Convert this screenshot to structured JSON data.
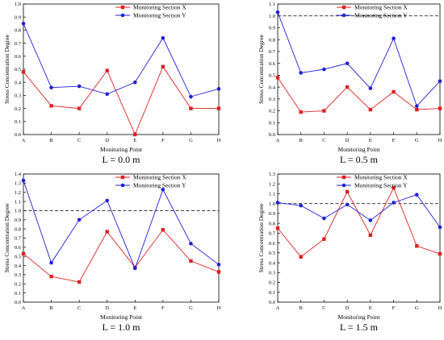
{
  "chart_data": [
    {
      "type": "line",
      "caption": "L = 0.0 m",
      "xlabel": "Monitoring Point",
      "ylabel": "Stress Concentration Degree",
      "categories": [
        "A",
        "B",
        "C",
        "D",
        "E",
        "F",
        "G",
        "H"
      ],
      "ylim": [
        0.0,
        1.0
      ],
      "yticks": [
        "0.0",
        "0.1",
        "0.2",
        "0.3",
        "0.4",
        "0.5",
        "0.6",
        "0.7",
        "0.8",
        "0.9",
        "1.0"
      ],
      "reference_line": null,
      "legend_position": "top-right",
      "series": [
        {
          "name": "Monitoring Section X",
          "color": "#e02020",
          "marker": "square",
          "values": [
            0.48,
            0.22,
            0.2,
            0.49,
            0.0,
            0.52,
            0.2,
            0.2
          ]
        },
        {
          "name": "Monitoring Section Y",
          "color": "#1f1fd6",
          "marker": "circle",
          "values": [
            0.85,
            0.36,
            0.37,
            0.31,
            0.4,
            0.74,
            0.29,
            0.35
          ]
        }
      ]
    },
    {
      "type": "line",
      "caption": "L = 0.5 m",
      "xlabel": "Monitoring Point",
      "ylabel": "Stress Concentration Degree",
      "categories": [
        "A",
        "B",
        "C",
        "D",
        "E",
        "F",
        "G",
        "H"
      ],
      "ylim": [
        0.0,
        1.1
      ],
      "yticks": [
        "0.0",
        "0.1",
        "0.2",
        "0.3",
        "0.4",
        "0.5",
        "0.6",
        "0.7",
        "0.8",
        "0.9",
        "1.0",
        "1.1"
      ],
      "reference_line": 1.0,
      "legend_position": "top-right",
      "series": [
        {
          "name": "Monitoring Section X",
          "color": "#e02020",
          "marker": "square",
          "values": [
            0.48,
            0.19,
            0.2,
            0.4,
            0.21,
            0.36,
            0.21,
            0.22
          ]
        },
        {
          "name": "Monitoring Section Y",
          "color": "#1f1fd6",
          "marker": "circle",
          "values": [
            1.03,
            0.52,
            0.55,
            0.6,
            0.39,
            0.81,
            0.24,
            0.45
          ]
        }
      ]
    },
    {
      "type": "line",
      "caption": "L = 1.0 m",
      "xlabel": "Monitoring Point",
      "ylabel": "Stress Concentration Degree",
      "categories": [
        "A",
        "B",
        "C",
        "D",
        "E",
        "F",
        "G",
        "H"
      ],
      "ylim": [
        0.0,
        1.4
      ],
      "yticks": [
        "0.0",
        "0.1",
        "0.2",
        "0.3",
        "0.4",
        "0.5",
        "0.6",
        "0.7",
        "0.8",
        "0.9",
        "1.0",
        "1.1",
        "1.2",
        "1.3",
        "1.4"
      ],
      "reference_line": 1.0,
      "legend_position": "top-right",
      "series": [
        {
          "name": "Monitoring Section X",
          "color": "#e02020",
          "marker": "square",
          "values": [
            0.53,
            0.28,
            0.22,
            0.77,
            0.38,
            0.79,
            0.45,
            0.33
          ]
        },
        {
          "name": "Monitoring Section Y",
          "color": "#1f1fd6",
          "marker": "circle",
          "values": [
            1.33,
            0.43,
            0.9,
            1.11,
            0.37,
            1.23,
            0.64,
            0.41
          ]
        }
      ]
    },
    {
      "type": "line",
      "caption": "L = 1.5 m",
      "xlabel": "Monitoring Point",
      "ylabel": "Stress Concentration Degree",
      "categories": [
        "A",
        "B",
        "C",
        "D",
        "E",
        "F",
        "G",
        "H"
      ],
      "ylim": [
        0.0,
        1.3
      ],
      "yticks": [
        "0.0",
        "0.1",
        "0.2",
        "0.3",
        "0.4",
        "0.5",
        "0.6",
        "0.7",
        "0.8",
        "0.9",
        "1.0",
        "1.1",
        "1.2",
        "1.3"
      ],
      "reference_line": 1.0,
      "legend_position": "top-right",
      "series": [
        {
          "name": "Monitoring Section X",
          "color": "#e02020",
          "marker": "square",
          "values": [
            0.75,
            0.46,
            0.64,
            1.12,
            0.68,
            1.16,
            0.57,
            0.49
          ]
        },
        {
          "name": "Monitoring Section Y",
          "color": "#1f1fd6",
          "marker": "circle",
          "values": [
            1.01,
            0.98,
            0.85,
            0.99,
            0.83,
            1.01,
            1.09,
            0.76
          ]
        }
      ]
    }
  ]
}
